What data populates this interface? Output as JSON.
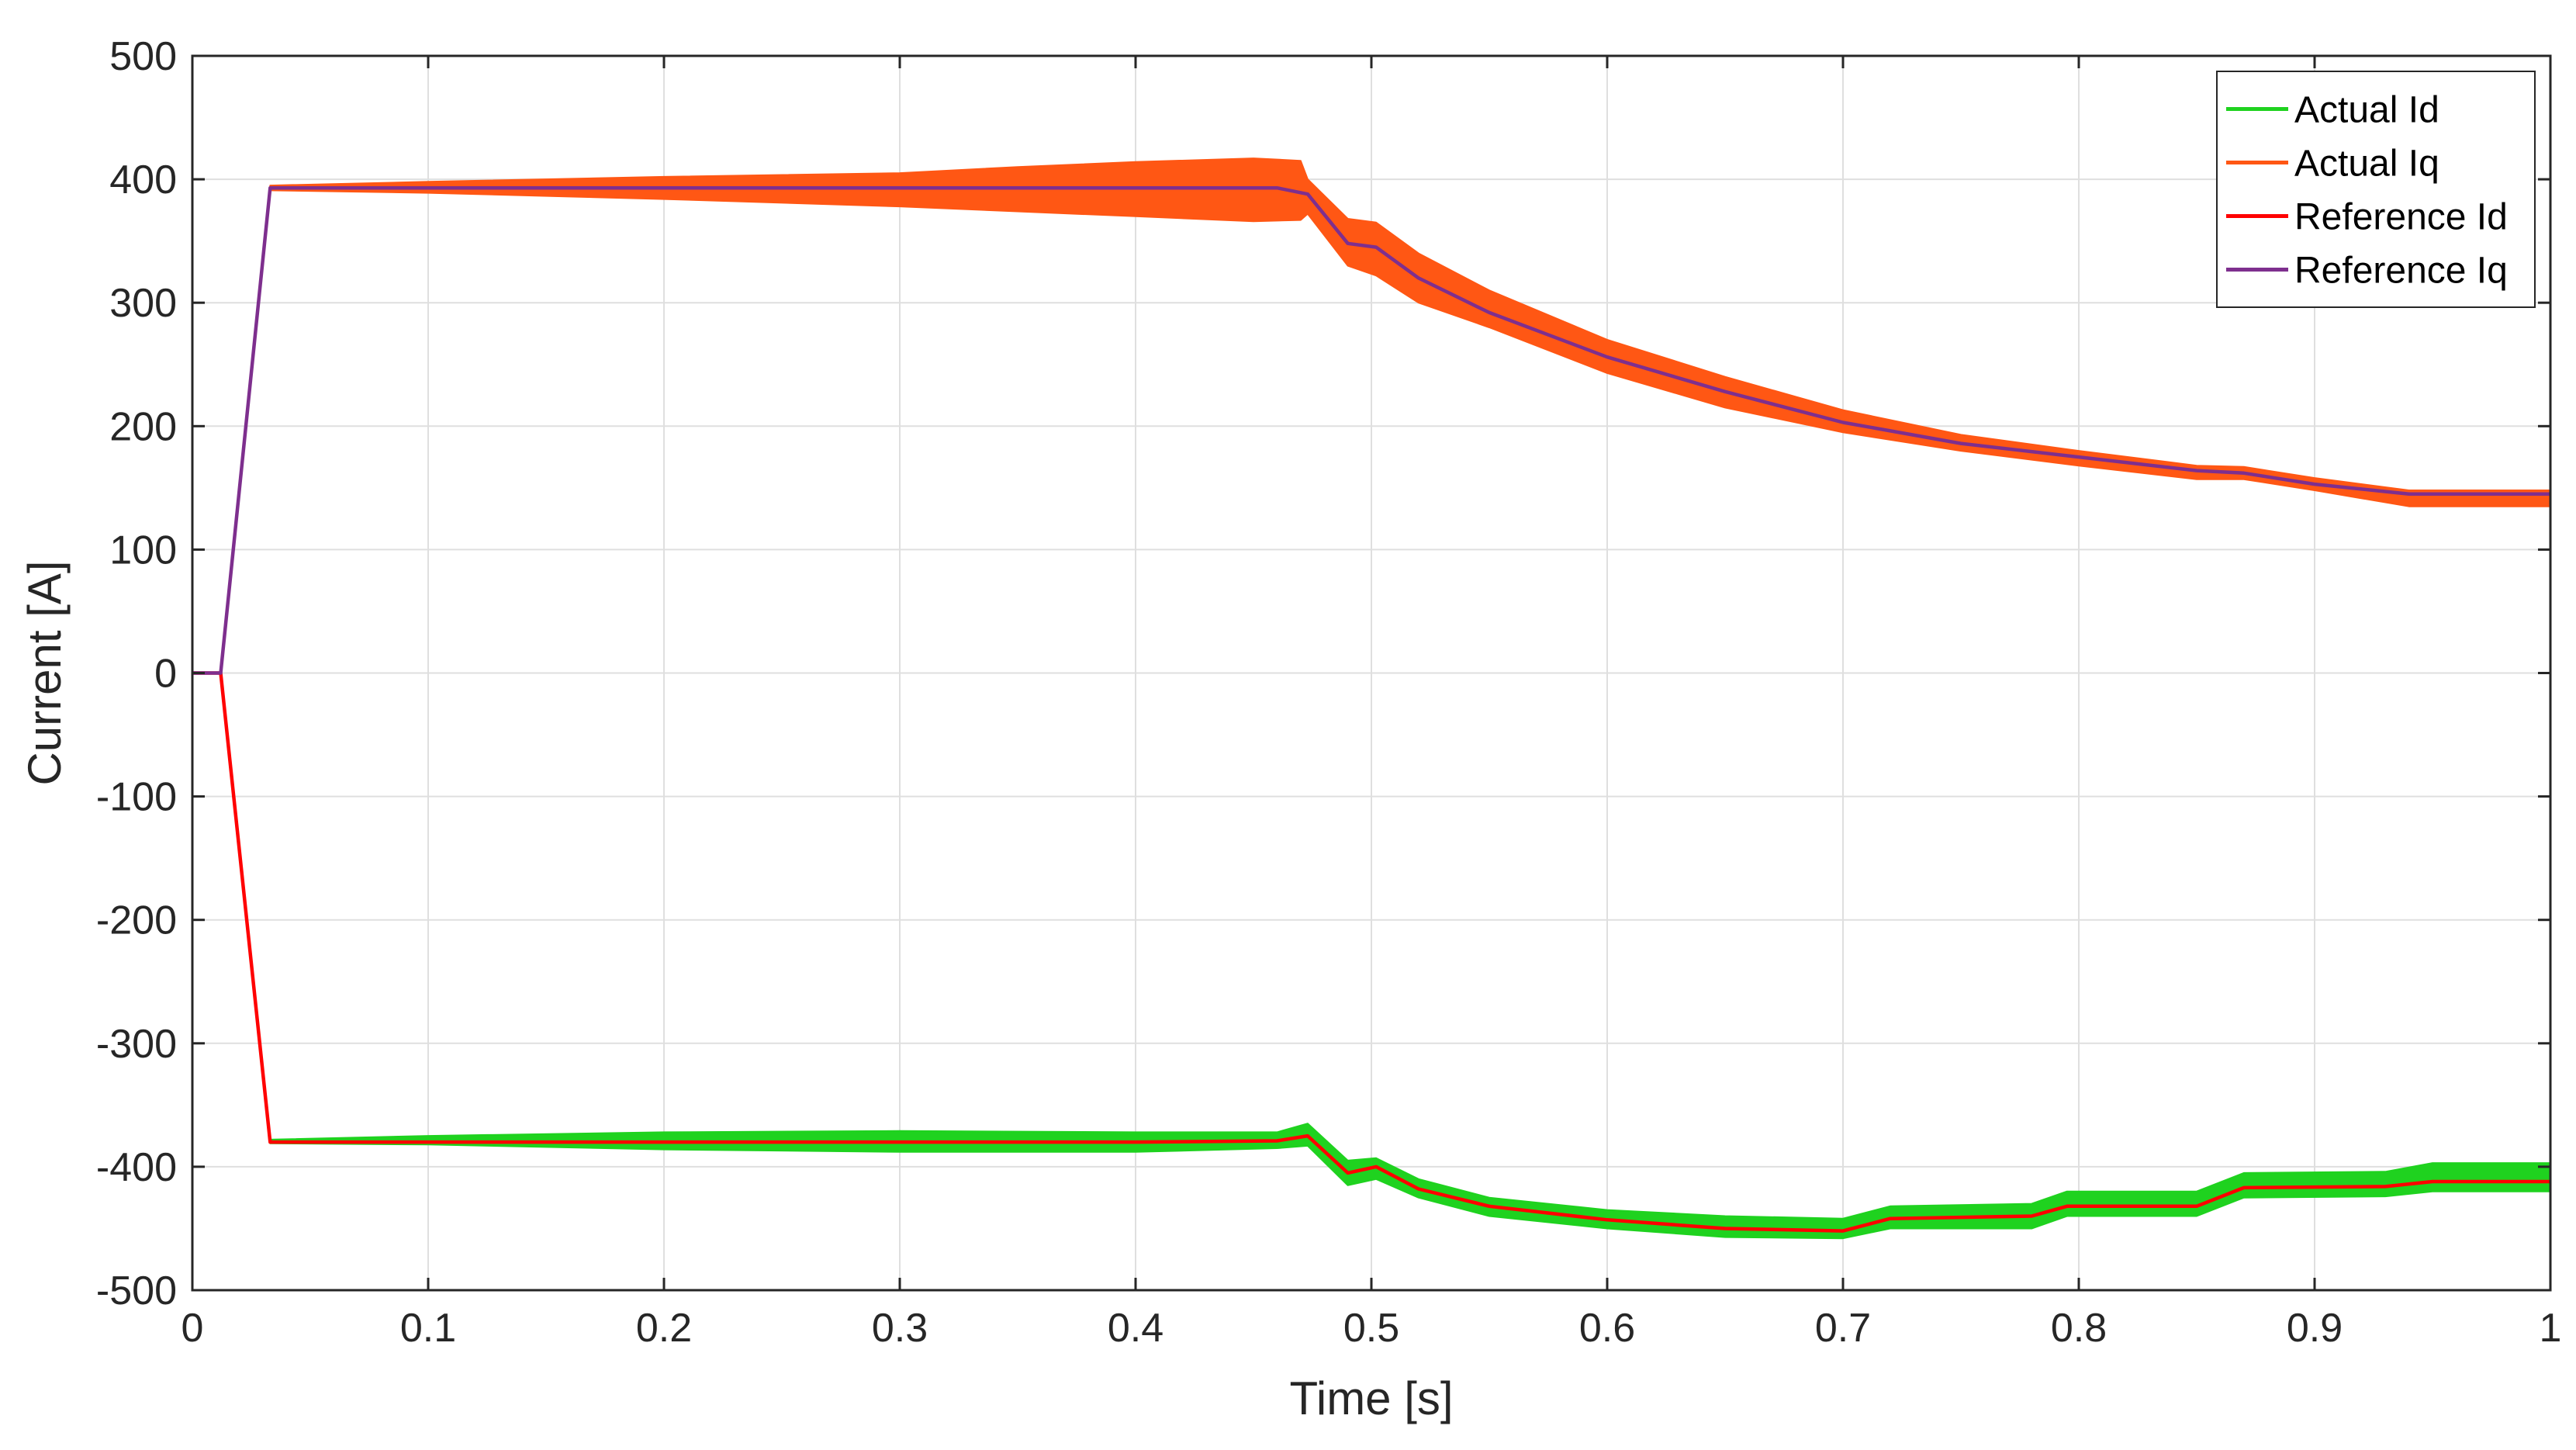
{
  "chart_data": {
    "type": "line",
    "title": "",
    "xlabel": "Time [s]",
    "ylabel": "Current [A]",
    "xlim": [
      0,
      1
    ],
    "ylim": [
      -500,
      500
    ],
    "xticks": [
      0,
      0.1,
      0.2,
      0.3,
      0.4,
      0.5,
      0.6,
      0.7,
      0.8,
      0.9,
      1
    ],
    "xtick_labels": [
      "0",
      "0.1",
      "0.2",
      "0.3",
      "0.4",
      "0.5",
      "0.6",
      "0.7",
      "0.8",
      "0.9",
      "1"
    ],
    "yticks": [
      -500,
      -400,
      -300,
      -200,
      -100,
      0,
      100,
      200,
      300,
      400,
      500
    ],
    "ytick_labels": [
      "-500",
      "-400",
      "-300",
      "-200",
      "-100",
      "0",
      "100",
      "200",
      "300",
      "400",
      "500"
    ],
    "grid": true,
    "legend_position": "top-right",
    "series": [
      {
        "name": "Actual Id",
        "color": "#1fd21f",
        "style": "band",
        "x": [
          0.033,
          0.1,
          0.2,
          0.3,
          0.4,
          0.46,
          0.473,
          0.49,
          0.502,
          0.52,
          0.55,
          0.6,
          0.65,
          0.7,
          0.72,
          0.78,
          0.795,
          0.85,
          0.87,
          0.93,
          0.95,
          1.0
        ],
        "upper": [
          -378,
          -375,
          -372,
          -371,
          -372,
          -372,
          -365,
          -395,
          -393,
          -410,
          -425,
          -435,
          -440,
          -442,
          -432,
          -430,
          -420,
          -420,
          -405,
          -404,
          -397,
          -397
        ],
        "lower": [
          -381,
          -382,
          -386,
          -388,
          -388,
          -385,
          -383,
          -415,
          -410,
          -425,
          -440,
          -450,
          -457,
          -458,
          -450,
          -450,
          -440,
          -440,
          -425,
          -424,
          -420,
          -420
        ]
      },
      {
        "name": "Actual Iq",
        "color": "#ff5714",
        "style": "band",
        "x": [
          0.033,
          0.1,
          0.2,
          0.3,
          0.35,
          0.4,
          0.45,
          0.47,
          0.473,
          0.49,
          0.502,
          0.52,
          0.55,
          0.6,
          0.65,
          0.7,
          0.75,
          0.8,
          0.85,
          0.87,
          0.9,
          0.94,
          1.0
        ],
        "upper": [
          395,
          398,
          402,
          405,
          410,
          414,
          417,
          415,
          400,
          368,
          365,
          340,
          310,
          270,
          240,
          213,
          193,
          180,
          168,
          167,
          158,
          148,
          148
        ],
        "lower": [
          391,
          389,
          384,
          378,
          374,
          370,
          366,
          367,
          372,
          330,
          322,
          300,
          280,
          243,
          215,
          195,
          180,
          168,
          157,
          157,
          148,
          135,
          135
        ]
      },
      {
        "name": "Reference Id",
        "color": "#ff0000",
        "style": "line",
        "x": [
          0,
          0.012,
          0.033,
          0.1,
          0.2,
          0.3,
          0.4,
          0.46,
          0.473,
          0.49,
          0.502,
          0.52,
          0.55,
          0.6,
          0.65,
          0.7,
          0.72,
          0.78,
          0.795,
          0.85,
          0.87,
          0.93,
          0.95,
          1.0
        ],
        "y": [
          0,
          0,
          -380,
          -380,
          -380,
          -380,
          -380,
          -379,
          -375,
          -405,
          -400,
          -418,
          -432,
          -443,
          -450,
          -452,
          -442,
          -440,
          -432,
          -432,
          -417,
          -416,
          -412,
          -412
        ]
      },
      {
        "name": "Reference Iq",
        "color": "#7e2f8e",
        "style": "line",
        "x": [
          0,
          0.012,
          0.033,
          0.1,
          0.2,
          0.3,
          0.4,
          0.46,
          0.473,
          0.49,
          0.502,
          0.52,
          0.55,
          0.6,
          0.65,
          0.7,
          0.75,
          0.8,
          0.85,
          0.87,
          0.9,
          0.94,
          1.0
        ],
        "y": [
          0,
          0,
          393,
          393,
          393,
          393,
          393,
          393,
          388,
          348,
          345,
          320,
          292,
          256,
          228,
          203,
          186,
          175,
          164,
          162,
          153,
          145,
          145
        ]
      }
    ]
  }
}
